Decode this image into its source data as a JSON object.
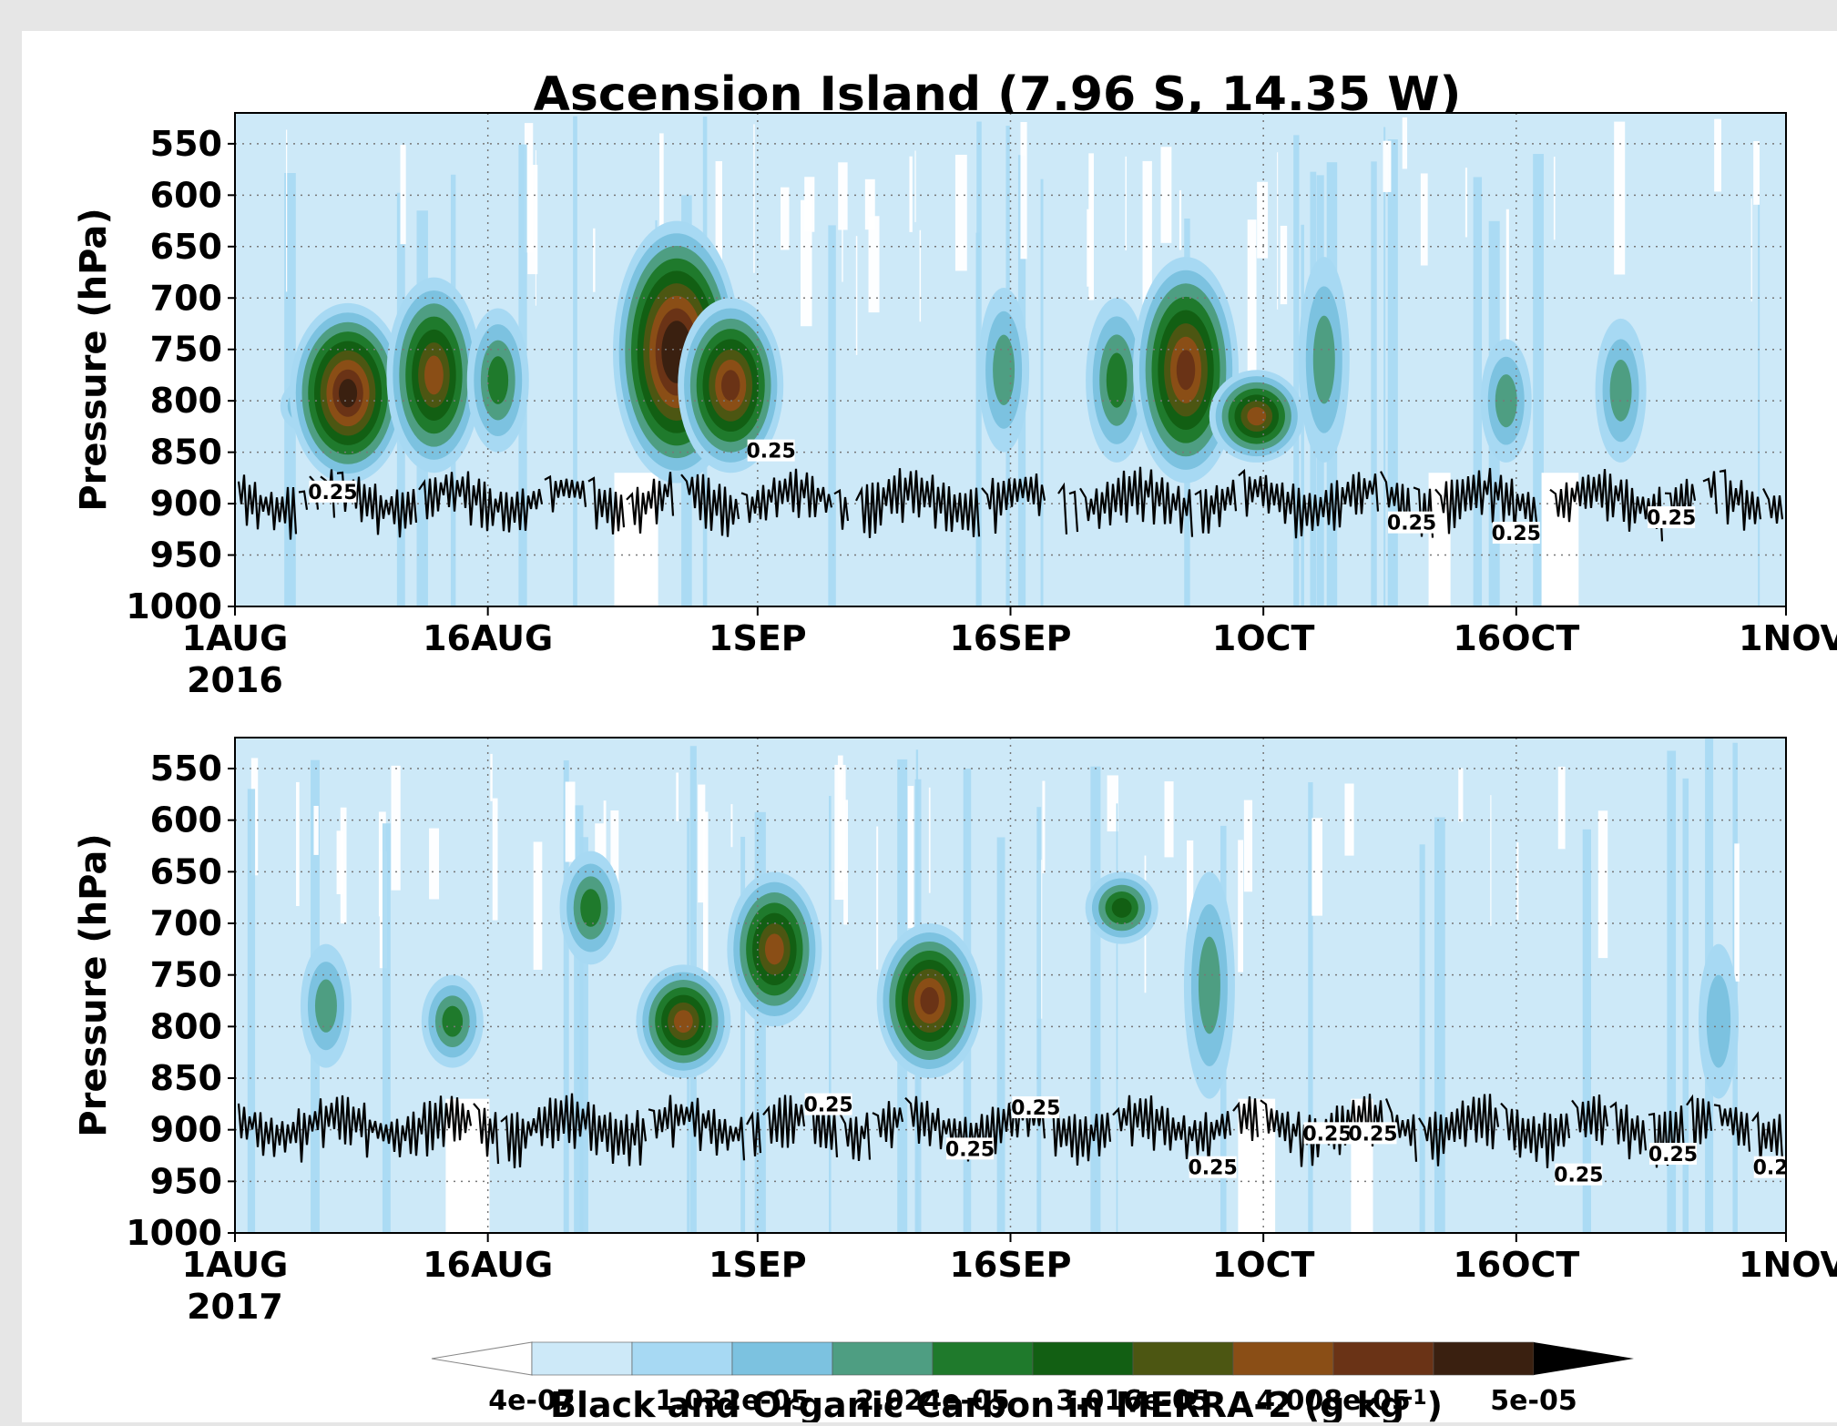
{
  "chart_data": [
    {
      "type": "heatmap",
      "title": "Ascension Island (7.96 S, 14.35 W)",
      "ylabel": "Pressure (hPa)",
      "year": "2016",
      "ylim": [
        1000,
        520
      ],
      "y_ticks": [
        550,
        600,
        650,
        700,
        750,
        800,
        850,
        900,
        950,
        1000
      ],
      "x_ticks": [
        "1AUG",
        "16AUG",
        "1SEP",
        "16SEP",
        "1OCT",
        "16OCT",
        "1NOV"
      ],
      "x_tick_days": [
        0,
        15,
        31,
        46,
        61,
        76,
        92
      ],
      "grid": true,
      "contour_label": "0.25",
      "plumes": [
        {
          "day": 4.2,
          "top": 780,
          "bottom": 830,
          "level": 3
        },
        {
          "day": 6.7,
          "top": 705,
          "bottom": 880,
          "level": 9
        },
        {
          "day": 11.8,
          "top": 680,
          "bottom": 870,
          "level": 7
        },
        {
          "day": 15.6,
          "top": 710,
          "bottom": 850,
          "level": 4
        },
        {
          "day": 26.2,
          "top": 625,
          "bottom": 880,
          "level": 10
        },
        {
          "day": 29.4,
          "top": 700,
          "bottom": 870,
          "level": 8
        },
        {
          "day": 45.6,
          "top": 690,
          "bottom": 850,
          "level": 3
        },
        {
          "day": 52.3,
          "top": 700,
          "bottom": 860,
          "level": 4
        },
        {
          "day": 56.4,
          "top": 660,
          "bottom": 880,
          "level": 8
        },
        {
          "day": 60.6,
          "top": 770,
          "bottom": 860,
          "level": 7
        },
        {
          "day": 64.6,
          "top": 660,
          "bottom": 860,
          "level": 3
        },
        {
          "day": 75.4,
          "top": 740,
          "bottom": 860,
          "level": 3
        },
        {
          "day": 82.2,
          "top": 720,
          "bottom": 860,
          "level": 3
        }
      ],
      "contour_label_positions": [
        [
          5.8,
          890
        ],
        [
          31.8,
          850
        ],
        [
          69.8,
          920
        ],
        [
          76.0,
          930
        ],
        [
          85.2,
          915
        ]
      ]
    },
    {
      "type": "heatmap",
      "ylabel": "Pressure (hPa)",
      "year": "2017",
      "ylim": [
        1000,
        520
      ],
      "y_ticks": [
        550,
        600,
        650,
        700,
        750,
        800,
        850,
        900,
        950,
        1000
      ],
      "x_ticks": [
        "1AUG",
        "16AUG",
        "1SEP",
        "16SEP",
        "1OCT",
        "16OCT",
        "1NOV"
      ],
      "x_tick_days": [
        0,
        15,
        31,
        46,
        61,
        76,
        92
      ],
      "grid": true,
      "contour_label": "0.25",
      "plumes": [
        {
          "day": 5.4,
          "top": 720,
          "bottom": 840,
          "level": 3
        },
        {
          "day": 12.9,
          "top": 750,
          "bottom": 840,
          "level": 4
        },
        {
          "day": 21.1,
          "top": 630,
          "bottom": 740,
          "level": 4
        },
        {
          "day": 26.6,
          "top": 740,
          "bottom": 850,
          "level": 7
        },
        {
          "day": 32.0,
          "top": 650,
          "bottom": 800,
          "level": 7
        },
        {
          "day": 41.2,
          "top": 700,
          "bottom": 850,
          "level": 8
        },
        {
          "day": 52.6,
          "top": 650,
          "bottom": 720,
          "level": 5
        },
        {
          "day": 57.8,
          "top": 650,
          "bottom": 870,
          "level": 3
        },
        {
          "day": 88.0,
          "top": 720,
          "bottom": 870,
          "level": 2
        }
      ],
      "contour_label_positions": [
        [
          35.2,
          877
        ],
        [
          43.6,
          920
        ],
        [
          47.5,
          880
        ],
        [
          58.0,
          938
        ],
        [
          64.8,
          905
        ],
        [
          67.5,
          905
        ],
        [
          79.7,
          945
        ],
        [
          85.3,
          925
        ],
        [
          91.5,
          938
        ]
      ]
    }
  ],
  "colorbar": {
    "label_main": "Black and Organic Carbon in MERRA-2 (g kg",
    "label_sup": "-1",
    "label_close": ")",
    "tick_labels": [
      "4e-07",
      "1.032e-05",
      "2.024e-05",
      "3.016e-05",
      "4.008e-05",
      "5e-05"
    ],
    "colors": [
      "#cde9f8",
      "#a7d9f3",
      "#7cc2e0",
      "#4e9e82",
      "#1f7a2c",
      "#125f13",
      "#4c5612",
      "#8a4e16",
      "#6a3316",
      "#3a2010"
    ],
    "extend_low_color": "#ffffff",
    "extend_high_color": "#000000"
  }
}
